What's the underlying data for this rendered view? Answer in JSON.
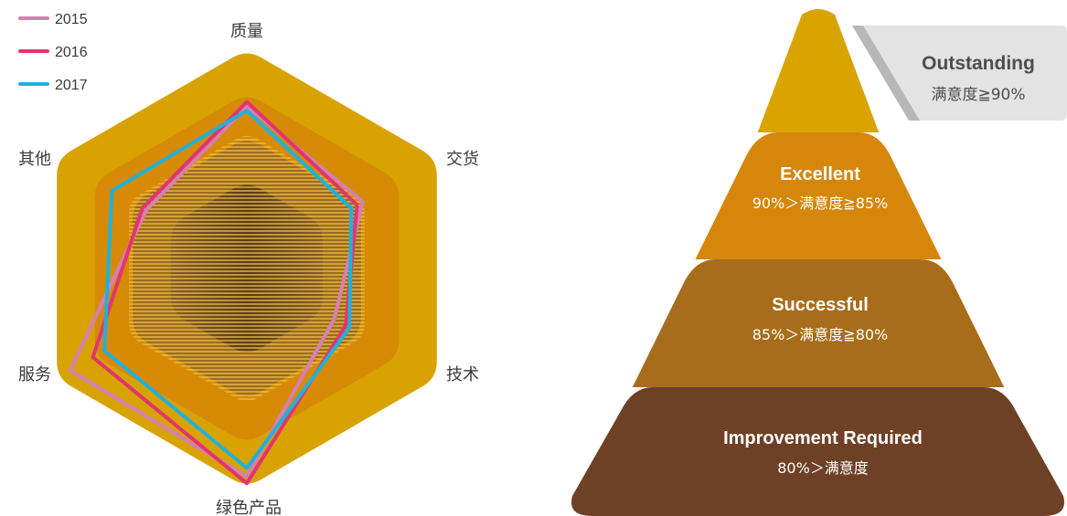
{
  "chart_data": [
    {
      "type": "radar",
      "axes": [
        "质量",
        "交货",
        "技术",
        "绿色产品",
        "服务",
        "其他"
      ],
      "legend": [
        "2015",
        "2016",
        "2017"
      ],
      "legend_position": "top-left",
      "band_levels": [
        1.0,
        0.8,
        0.6,
        0.4
      ],
      "series": [
        {
          "name": "2015",
          "color": "#d67fb3",
          "values": [
            0.74,
            0.61,
            0.46,
            0.95,
            0.93,
            0.53
          ]
        },
        {
          "name": "2016",
          "color": "#e2356e",
          "values": [
            0.76,
            0.58,
            0.52,
            0.98,
            0.81,
            0.55
          ]
        },
        {
          "name": "2017",
          "color": "#1fb1dc",
          "values": [
            0.72,
            0.55,
            0.54,
            0.91,
            0.75,
            0.71
          ]
        }
      ]
    },
    {
      "type": "pyramid",
      "tiers": [
        {
          "title": "Outstanding",
          "range": "满意度≧90%",
          "color": "#d9a400"
        },
        {
          "title": "Excellent",
          "range": "90%＞满意度≧85%",
          "color": "#d6860b"
        },
        {
          "title": "Successful",
          "range": "85%＞满意度≧80%",
          "color": "#a86d1a"
        },
        {
          "title": "Improvement Required",
          "range": "80%＞满意度",
          "color": "#6e4126"
        }
      ]
    }
  ]
}
